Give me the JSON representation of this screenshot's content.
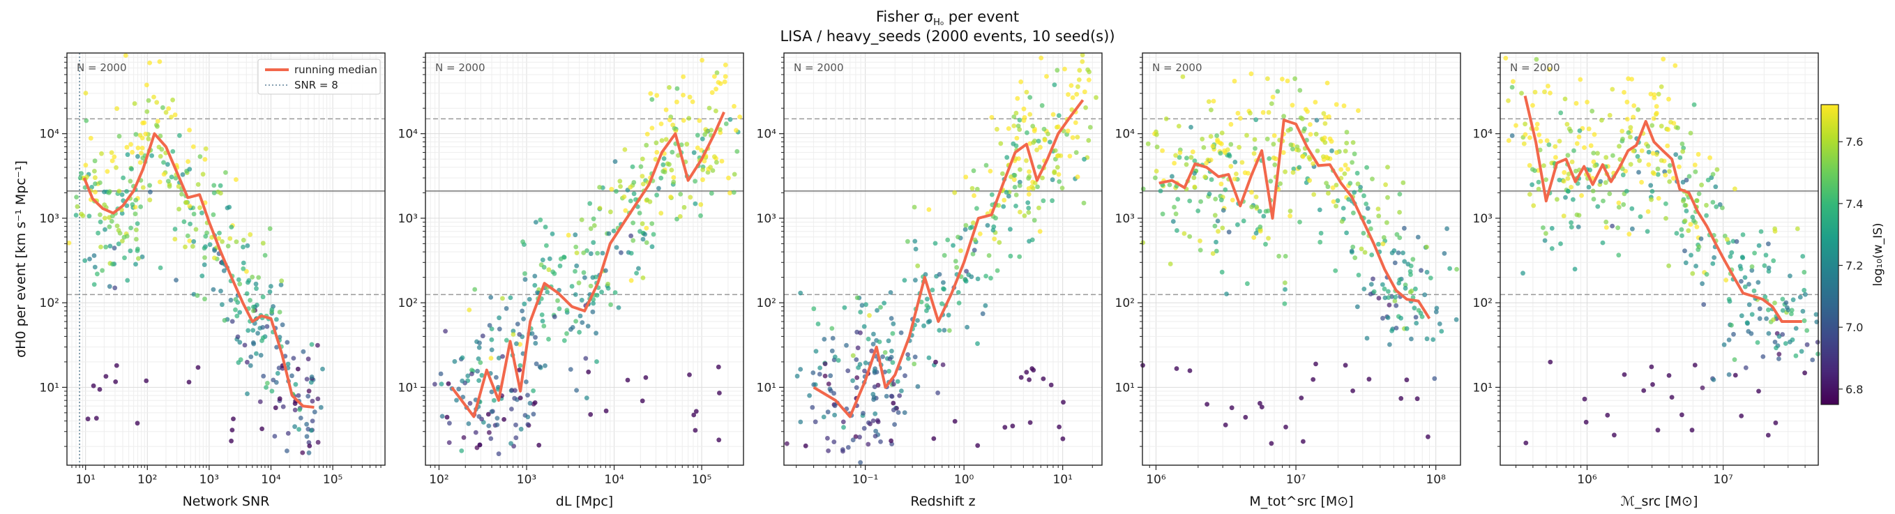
{
  "figure": {
    "title_line1": "Fisher σ",
    "title_line1_sub": "H₀",
    "title_line1_tail": " per event",
    "title_line2": "LISA / heavy_seeds  (2000 events, 10 seed(s))"
  },
  "colors": {
    "median": "#f2674b",
    "ref_line": "#888888",
    "snr_line": "#5b7f95",
    "grid": "#e6e6e6",
    "viridis": [
      "#440154",
      "#482878",
      "#3e4989",
      "#31688e",
      "#26828e",
      "#1f9e89",
      "#35b779",
      "#6ece58",
      "#b5de2b",
      "#fde725"
    ]
  },
  "legend": {
    "median_label": "running median",
    "snr_label": "SNR = 8"
  },
  "colorbar": {
    "label": "log₁₀(w_IS)",
    "ticks": [
      "6.8",
      "7.0",
      "7.2",
      "7.4",
      "7.6"
    ],
    "range": [
      6.75,
      7.72
    ]
  },
  "chart_data": [
    {
      "type": "scatter",
      "n_label": "N = 2000",
      "xlabel": "Network SNR",
      "ylabel": "σH0 per event [km s⁻¹ Mpc⁻¹]",
      "xlim": [
        5,
        700000
      ],
      "ylim": [
        1.2,
        90000
      ],
      "xticks": [
        10,
        100,
        1000,
        10000,
        100000
      ],
      "xtick_labels": [
        "10¹",
        "10²",
        "10³",
        "10⁴",
        "10⁵"
      ],
      "yticks": [
        10,
        100,
        1000,
        10000
      ],
      "ytick_labels": [
        "10¹",
        "10²",
        "10³",
        "10⁴"
      ],
      "hlines_dashed": [
        15000,
        125
      ],
      "hline_solid": 2100,
      "vline": 8,
      "median_x": [
        9.5,
        13,
        19,
        28,
        40,
        60,
        85,
        130,
        200,
        300,
        450,
        700,
        1000,
        1500,
        2300,
        3500,
        5000,
        7000,
        10000,
        15000,
        22000,
        33000,
        50000
      ],
      "median_y": [
        3000,
        1700,
        1300,
        1150,
        1400,
        2100,
        3800,
        10000,
        7000,
        3500,
        1750,
        1900,
        900,
        420,
        200,
        100,
        60,
        70,
        65,
        25,
        8,
        6,
        5.8
      ]
    },
    {
      "type": "scatter",
      "n_label": "N = 2000",
      "xlabel": "dL [Mpc]",
      "xlim": [
        70,
        300000
      ],
      "ylim": [
        1.2,
        90000
      ],
      "xticks": [
        100,
        1000,
        10000,
        100000
      ],
      "xtick_labels": [
        "10²",
        "10³",
        "10⁴",
        "10⁵"
      ],
      "yticks": [
        10,
        100,
        1000,
        10000
      ],
      "ytick_labels": [
        "10¹",
        "10²",
        "10³",
        "10⁴"
      ],
      "hlines_dashed": [
        15000,
        125
      ],
      "hline_solid": 2100,
      "median_x": [
        140,
        250,
        350,
        480,
        650,
        850,
        1100,
        1600,
        2300,
        3300,
        4600,
        6500,
        9000,
        13000,
        18000,
        25000,
        35000,
        50000,
        70000,
        100000,
        140000,
        180000
      ],
      "median_y": [
        10,
        4.5,
        16,
        7,
        35,
        9,
        60,
        170,
        130,
        90,
        80,
        170,
        500,
        900,
        1500,
        2500,
        6000,
        10000,
        2800,
        5000,
        10000,
        18000
      ]
    },
    {
      "type": "scatter",
      "n_label": "N = 2000",
      "xlabel": "Redshift z",
      "xlim": [
        0.015,
        25
      ],
      "ylim": [
        1.2,
        90000
      ],
      "xticks": [
        0.1,
        1,
        10
      ],
      "xtick_labels": [
        "10⁻¹",
        "10⁰",
        "10¹"
      ],
      "yticks": [
        10,
        100,
        1000,
        10000
      ],
      "ytick_labels": [
        "10¹",
        "10²",
        "10³",
        "10⁴"
      ],
      "hlines_dashed": [
        15000,
        125
      ],
      "hline_solid": 2100,
      "median_x": [
        0.03,
        0.05,
        0.07,
        0.1,
        0.13,
        0.16,
        0.2,
        0.28,
        0.4,
        0.55,
        0.75,
        1.0,
        1.4,
        1.9,
        2.5,
        3.3,
        4.3,
        5.5,
        7,
        9,
        12,
        16
      ],
      "median_y": [
        10,
        7,
        4.5,
        12,
        30,
        10,
        14,
        40,
        200,
        60,
        130,
        300,
        1000,
        1100,
        2600,
        6000,
        7500,
        2800,
        5000,
        10000,
        16000,
        25000
      ]
    },
    {
      "type": "scatter",
      "n_label": "N = 2000",
      "xlabel": "M_tot^src [M⊙]",
      "xlim": [
        800000,
        150000000
      ],
      "ylim": [
        1.2,
        90000
      ],
      "xticks": [
        1000000,
        10000000,
        100000000
      ],
      "xtick_labels": [
        "10⁶",
        "10⁷",
        "10⁸"
      ],
      "yticks": [
        10,
        100,
        1000,
        10000
      ],
      "ytick_labels": [
        "10¹",
        "10²",
        "10³",
        "10⁴"
      ],
      "hlines_dashed": [
        15000,
        125
      ],
      "hline_solid": 2100,
      "median_x": [
        1050000,
        1300000,
        1600000,
        1900000,
        2300000,
        2800000,
        3300000,
        4000000,
        4800000,
        5700000,
        6800000,
        8200000,
        10000000,
        12000000,
        14500000,
        17500000,
        21000000,
        25000000,
        30000000,
        36000000,
        43000000,
        52000000,
        62000000,
        75000000,
        90000000
      ],
      "median_y": [
        2600,
        2800,
        2300,
        4400,
        4000,
        3100,
        3300,
        1400,
        3200,
        6300,
        1000,
        14500,
        13000,
        7000,
        4200,
        4300,
        2600,
        1800,
        950,
        500,
        250,
        140,
        110,
        105,
        65
      ]
    },
    {
      "type": "scatter",
      "n_label": "N = 2000",
      "xlabel": "ℳ_src [M⊙]",
      "xlim": [
        230000,
        50000000
      ],
      "ylim": [
        1.2,
        90000
      ],
      "xticks": [
        1000000,
        10000000
      ],
      "xtick_labels": [
        "10⁶",
        "10⁷"
      ],
      "yticks": [
        10,
        100,
        1000,
        10000
      ],
      "ytick_labels": [
        "10¹",
        "10²",
        "10³",
        "10⁴"
      ],
      "hlines_dashed": [
        15000,
        125
      ],
      "hline_solid": 2100,
      "median_x": [
        350000,
        420000,
        500000,
        600000,
        700000,
        820000,
        950000,
        1100000,
        1300000,
        1500000,
        1750000,
        2000000,
        2300000,
        2700000,
        3100000,
        3600000,
        4200000,
        4800000,
        5600000,
        6500000,
        7600000,
        8800000,
        10200000,
        12000000,
        14000000,
        16500000,
        19500000,
        23000000,
        27000000,
        32000000,
        38000000
      ],
      "median_y": [
        28000,
        8000,
        1600,
        4500,
        5000,
        2700,
        4100,
        2500,
        4300,
        2700,
        4100,
        6300,
        7300,
        14000,
        8000,
        6300,
        5000,
        2200,
        2000,
        1200,
        800,
        500,
        320,
        200,
        130,
        120,
        110,
        90,
        60,
        60,
        60
      ]
    }
  ]
}
